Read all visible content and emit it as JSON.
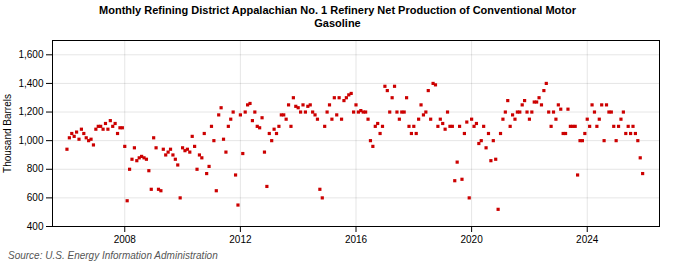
{
  "chart_data": {
    "type": "scatter",
    "title": "Monthly Refining District Appalachian No. 1 Refinery Net Production of Conventional Motor\nGasoline",
    "ylabel": "Thousand Barrels",
    "annotations": [
      "Source: U.S. Energy Information Administration"
    ],
    "color": "#cc0000",
    "marker": "square",
    "grid": true,
    "xlim": [
      2005.5,
      2026.5
    ],
    "xticks": [
      2008,
      2012,
      2016,
      2020,
      2024
    ],
    "ylim": [
      400,
      1700
    ],
    "yticks": [
      400,
      600,
      800,
      {
        "value": 1000,
        "label": "1,000"
      },
      {
        "value": 1200,
        "label": "1,200"
      },
      {
        "value": 1400,
        "label": "1,400"
      },
      {
        "value": 1600,
        "label": "1,600"
      }
    ],
    "x": [
      2006,
      2006.0833,
      2006.1667,
      2006.25,
      2006.3333,
      2006.4167,
      2006.5,
      2006.5833,
      2006.6667,
      2006.75,
      2006.8333,
      2006.9167,
      2007,
      2007.0833,
      2007.1667,
      2007.25,
      2007.3333,
      2007.4167,
      2007.5,
      2007.5833,
      2007.6667,
      2007.75,
      2007.8333,
      2007.9167,
      2008,
      2008.0833,
      2008.1667,
      2008.25,
      2008.3333,
      2008.4167,
      2008.5,
      2008.5833,
      2008.6667,
      2008.75,
      2008.8333,
      2008.9167,
      2009,
      2009.0833,
      2009.1667,
      2009.25,
      2009.3333,
      2009.4167,
      2009.5,
      2009.5833,
      2009.6667,
      2009.75,
      2009.8333,
      2009.9167,
      2010,
      2010.0833,
      2010.1667,
      2010.25,
      2010.3333,
      2010.4167,
      2010.5,
      2010.5833,
      2010.6667,
      2010.75,
      2010.8333,
      2010.9167,
      2011,
      2011.0833,
      2011.1667,
      2011.25,
      2011.3333,
      2011.4167,
      2011.5,
      2011.5833,
      2011.6667,
      2011.75,
      2011.8333,
      2011.9167,
      2012,
      2012.0833,
      2012.1667,
      2012.25,
      2012.3333,
      2012.4167,
      2012.5,
      2012.5833,
      2012.6667,
      2012.75,
      2012.8333,
      2012.9167,
      2013,
      2013.0833,
      2013.1667,
      2013.25,
      2013.3333,
      2013.4167,
      2013.5,
      2013.5833,
      2013.6667,
      2013.75,
      2013.8333,
      2013.9167,
      2014,
      2014.0833,
      2014.1667,
      2014.25,
      2014.3333,
      2014.4167,
      2014.5,
      2014.5833,
      2014.6667,
      2014.75,
      2014.8333,
      2014.9167,
      2015,
      2015.0833,
      2015.1667,
      2015.25,
      2015.3333,
      2015.4167,
      2015.5,
      2015.5833,
      2015.6667,
      2015.75,
      2015.8333,
      2015.9167,
      2016,
      2016.0833,
      2016.1667,
      2016.25,
      2016.3333,
      2016.4167,
      2016.5,
      2016.5833,
      2016.6667,
      2016.75,
      2016.8333,
      2016.9167,
      2017,
      2017.0833,
      2017.1667,
      2017.25,
      2017.3333,
      2017.4167,
      2017.5,
      2017.5833,
      2017.6667,
      2017.75,
      2017.8333,
      2017.9167,
      2018,
      2018.0833,
      2018.1667,
      2018.25,
      2018.3333,
      2018.4167,
      2018.5,
      2018.5833,
      2018.6667,
      2018.75,
      2018.8333,
      2018.9167,
      2019,
      2019.0833,
      2019.1667,
      2019.25,
      2019.3333,
      2019.4167,
      2019.5,
      2019.5833,
      2019.6667,
      2019.75,
      2019.8333,
      2019.9167,
      2020,
      2020.0833,
      2020.1667,
      2020.25,
      2020.3333,
      2020.4167,
      2020.5,
      2020.5833,
      2020.6667,
      2020.75,
      2020.8333,
      2020.9167,
      2021,
      2021.0833,
      2021.1667,
      2021.25,
      2021.3333,
      2021.4167,
      2021.5,
      2021.5833,
      2021.6667,
      2021.75,
      2021.8333,
      2021.9167,
      2022,
      2022.0833,
      2022.1667,
      2022.25,
      2022.3333,
      2022.4167,
      2022.5,
      2022.5833,
      2022.6667,
      2022.75,
      2022.8333,
      2022.9167,
      2023,
      2023.0833,
      2023.1667,
      2023.25,
      2023.3333,
      2023.4167,
      2023.5,
      2023.5833,
      2023.6667,
      2023.75,
      2023.8333,
      2023.9167,
      2024,
      2024.0833,
      2024.1667,
      2024.25,
      2024.3333,
      2024.4167,
      2024.5,
      2024.5833,
      2024.6667,
      2024.75,
      2024.8333,
      2024.9167,
      2025,
      2025.0833,
      2025.1667,
      2025.25,
      2025.3333,
      2025.4167,
      2025.5,
      2025.5833,
      2025.6667,
      2025.75,
      2025.8333,
      2025.9167
    ],
    "values": [
      940,
      1020,
      1050,
      1030,
      1060,
      1010,
      1080,
      1050,
      1020,
      1000,
      1010,
      970,
      1080,
      1100,
      1100,
      1080,
      1120,
      1080,
      1140,
      1100,
      1120,
      1050,
      1090,
      1090,
      960,
      580,
      800,
      870,
      950,
      860,
      880,
      890,
      880,
      870,
      790,
      660,
      1020,
      950,
      660,
      650,
      940,
      900,
      920,
      940,
      900,
      870,
      830,
      600,
      950,
      930,
      940,
      920,
      1030,
      960,
      800,
      900,
      880,
      1050,
      770,
      820,
      1100,
      1000,
      650,
      1180,
      1230,
      1010,
      920,
      1100,
      1150,
      1200,
      760,
      550,
      1180,
      910,
      1200,
      1250,
      1260,
      1140,
      1200,
      1100,
      1090,
      1160,
      920,
      680,
      1050,
      1000,
      1080,
      1050,
      1100,
      1180,
      1180,
      1150,
      1250,
      1100,
      1300,
      1240,
      1230,
      1200,
      1250,
      1200,
      1240,
      1250,
      1200,
      1180,
      1150,
      660,
      600,
      1100,
      1200,
      1250,
      1150,
      1300,
      1180,
      1300,
      1150,
      1280,
      1300,
      1320,
      1330,
      1200,
      1250,
      1200,
      1210,
      1200,
      1200,
      1150,
      1000,
      960,
      1100,
      1120,
      1050,
      1100,
      1380,
      1350,
      1200,
      1300,
      1380,
      1200,
      1150,
      1200,
      1200,
      1300,
      1100,
      1050,
      1100,
      1050,
      1150,
      1250,
      1180,
      1200,
      1350,
      1150,
      1400,
      1390,
      1100,
      1150,
      1120,
      1080,
      1200,
      1100,
      1100,
      720,
      850,
      1100,
      730,
      1050,
      1130,
      600,
      1150,
      1100,
      1120,
      980,
      1000,
      1100,
      950,
      1050,
      860,
      1000,
      870,
      520,
      1050,
      1150,
      1200,
      1280,
      1100,
      1180,
      1150,
      1200,
      1200,
      1250,
      1280,
      1200,
      1150,
      1200,
      1270,
      1270,
      1300,
      1250,
      1350,
      1400,
      1200,
      1100,
      1200,
      1150,
      1250,
      1220,
      1050,
      1050,
      1220,
      1100,
      1100,
      1100,
      760,
      1000,
      1000,
      1050,
      1150,
      1100,
      1250,
      1200,
      1100,
      1150,
      1250,
      1000,
      1250,
      1200,
      1200,
      1100,
      1000,
      1100,
      1150,
      1200,
      1050,
      1100,
      1050,
      1100,
      1050,
      1000,
      880,
      770
    ]
  }
}
